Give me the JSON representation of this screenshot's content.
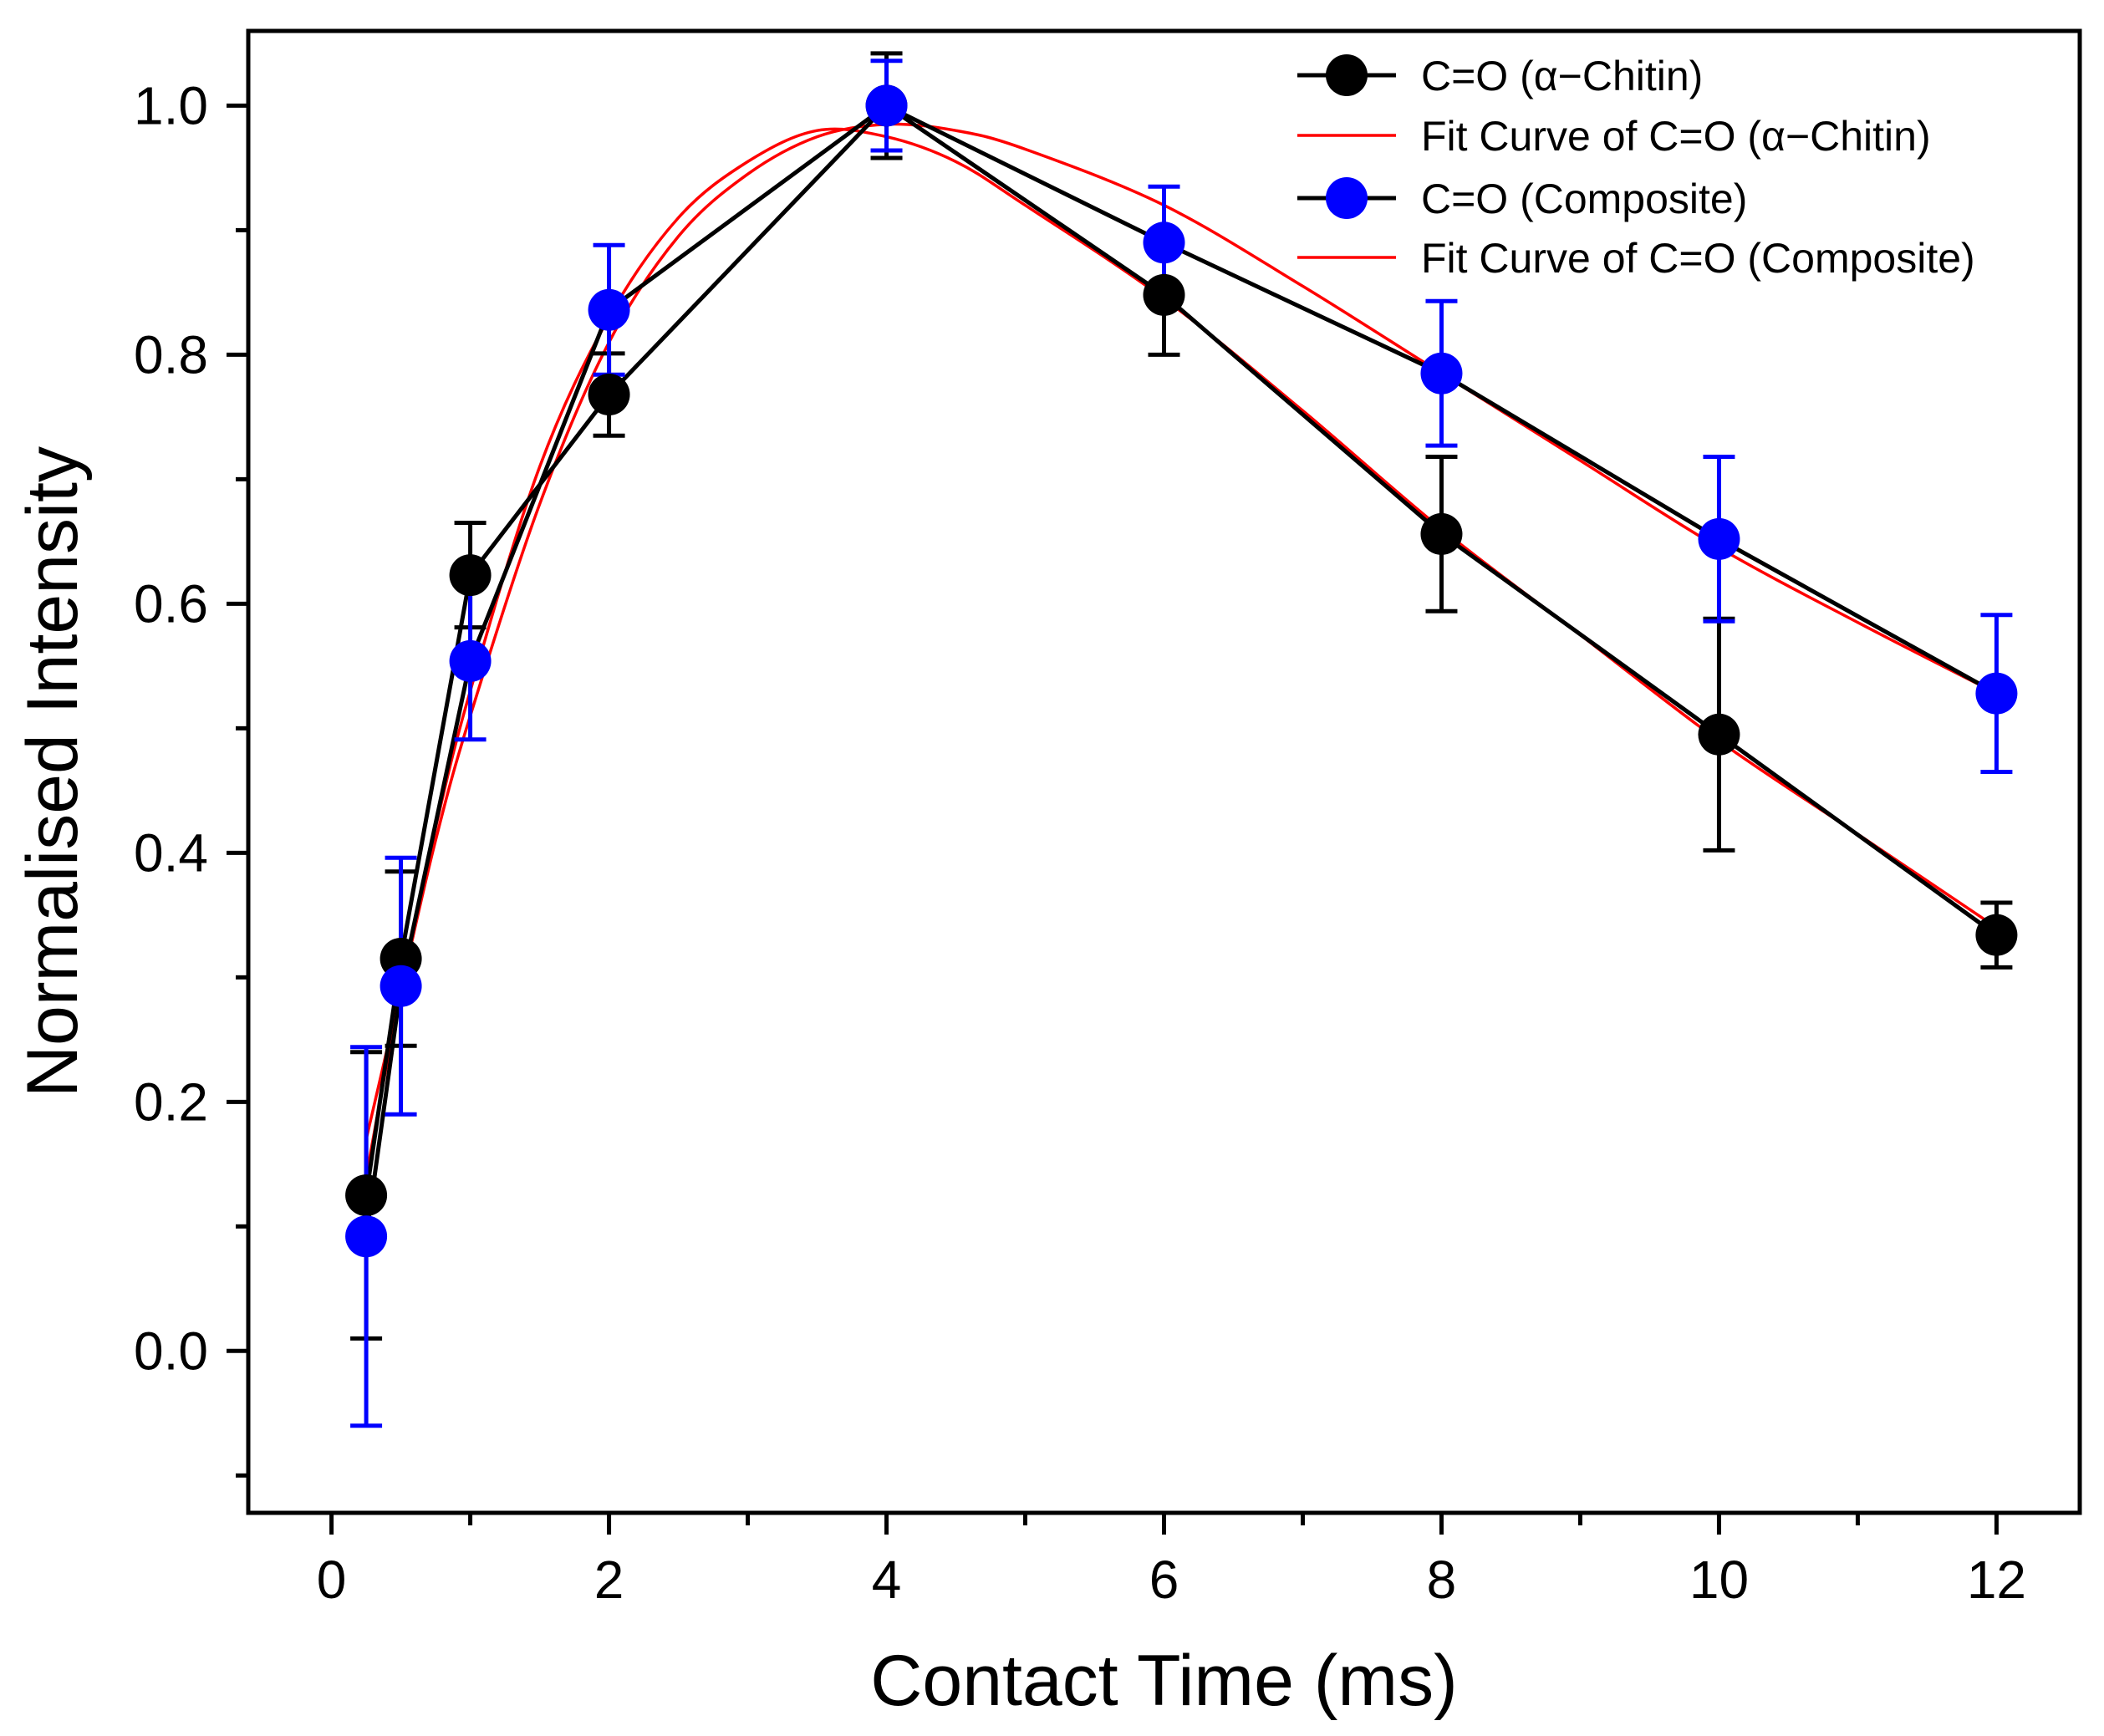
{
  "chart_data": {
    "type": "line",
    "xlabel": "Contact Time (ms)",
    "ylabel": "Normalised  Intensity",
    "xlim": [
      -0.6,
      12.6
    ],
    "ylim": [
      -0.13,
      1.06
    ],
    "x_ticks": [
      0,
      2,
      4,
      6,
      8,
      10,
      12
    ],
    "x_tick_labels": [
      "0",
      "2",
      "4",
      "6",
      "8",
      "10",
      "12"
    ],
    "x_minor_ticks": [
      1,
      3,
      5,
      7,
      9,
      11
    ],
    "y_ticks": [
      0.0,
      0.2,
      0.4,
      0.6,
      0.8,
      1.0
    ],
    "y_tick_labels": [
      "0.0",
      "0.2",
      "0.4",
      "0.6",
      "0.8",
      "1.0"
    ],
    "y_minor_ticks": [
      -0.1,
      0.1,
      0.3,
      0.5,
      0.7,
      0.9
    ],
    "legend_position": "top-right",
    "series": [
      {
        "name": "C=O (α−Chitin)",
        "kind": "data",
        "color": "#000000",
        "x": [
          0.25,
          0.5,
          1,
          2,
          4,
          6,
          8,
          10,
          12
        ],
        "y": [
          0.125,
          0.315,
          0.623,
          0.768,
          1.0,
          0.848,
          0.656,
          0.495,
          0.334
        ],
        "err": [
          0.115,
          0.07,
          0.042,
          0.033,
          0.042,
          0.048,
          0.062,
          0.093,
          0.026
        ]
      },
      {
        "name": "Fit Curve of C=O (α−Chitin)",
        "kind": "fit",
        "color": "#ff0000",
        "x": [
          0.25,
          0.5,
          0.75,
          1,
          1.5,
          2,
          2.5,
          3,
          3.5,
          4,
          4.5,
          5,
          6,
          7,
          8,
          9,
          10,
          11,
          12
        ],
        "y": [
          0.14,
          0.29,
          0.42,
          0.53,
          0.71,
          0.83,
          0.91,
          0.955,
          0.98,
          0.975,
          0.955,
          0.92,
          0.845,
          0.755,
          0.66,
          0.575,
          0.49,
          0.415,
          0.34
        ]
      },
      {
        "name": "C=O (Composite)",
        "kind": "data",
        "color": "#0000ff",
        "x": [
          0.25,
          0.5,
          1,
          2,
          4,
          6,
          8,
          10,
          12
        ],
        "y": [
          0.092,
          0.293,
          0.554,
          0.836,
          1.0,
          0.89,
          0.785,
          0.652,
          0.528
        ],
        "err": [
          0.152,
          0.103,
          0.063,
          0.052,
          0.036,
          0.045,
          0.058,
          0.066,
          0.063
        ]
      },
      {
        "name": "Fit Curve of C=O (Composite)",
        "kind": "fit",
        "color": "#ff0000",
        "x": [
          0.25,
          0.5,
          0.75,
          1,
          1.5,
          2,
          2.5,
          3,
          3.5,
          4,
          4.5,
          5,
          6,
          7,
          8,
          9,
          10,
          11,
          12
        ],
        "y": [
          0.17,
          0.29,
          0.41,
          0.51,
          0.68,
          0.81,
          0.895,
          0.945,
          0.975,
          0.985,
          0.98,
          0.965,
          0.92,
          0.855,
          0.785,
          0.715,
          0.645,
          0.585,
          0.528
        ]
      }
    ]
  }
}
